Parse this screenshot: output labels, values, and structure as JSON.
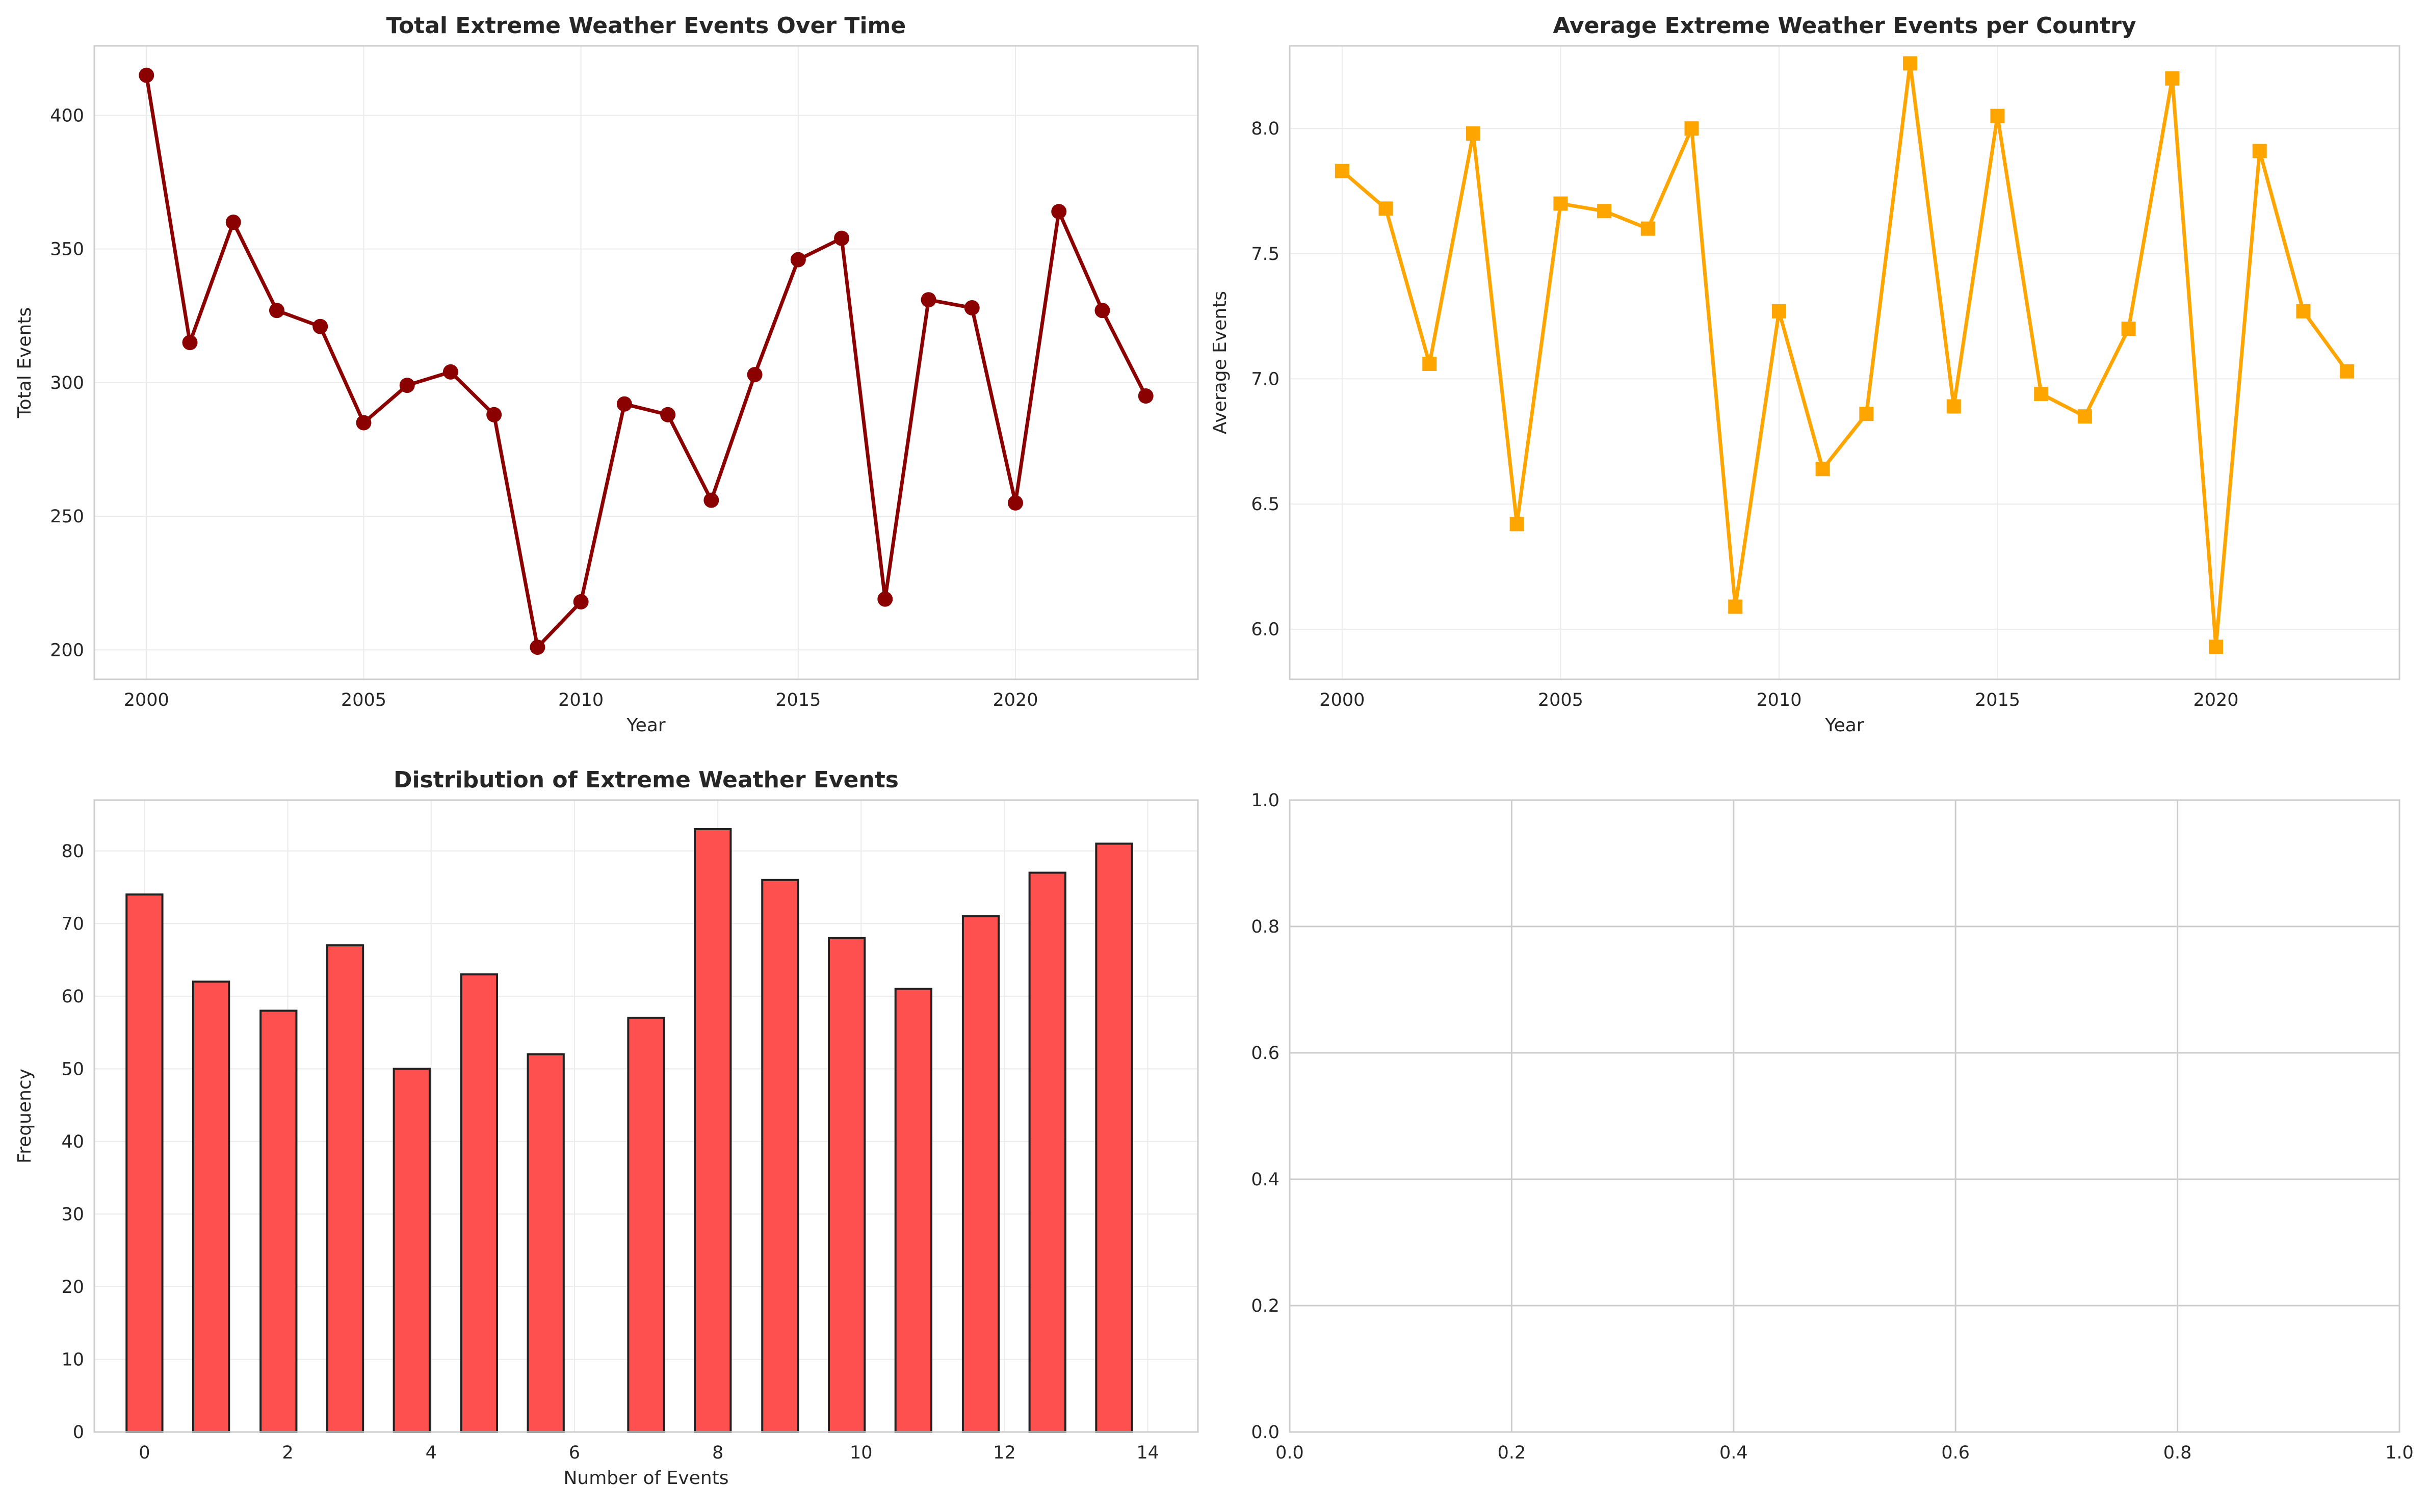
{
  "colors": {
    "series1": "#8b0000",
    "series2": "#ffa500",
    "bars": "#ff4c4c",
    "bar_edge": "#222222",
    "grid": "#ebebeb",
    "grid_empty": "#cccccc",
    "spine": "#cccccc"
  },
  "chart_data": [
    {
      "type": "line",
      "title": "Total Extreme Weather Events Over Time",
      "xlabel": "Year",
      "ylabel": "Total Events",
      "marker": "circle",
      "grid": true,
      "xlim": [
        1998.8,
        2024.2
      ],
      "ylim": [
        189,
        426
      ],
      "xticks": [
        2000,
        2005,
        2010,
        2015,
        2020
      ],
      "yticks": [
        200,
        250,
        300,
        350,
        400
      ],
      "x": [
        2000,
        2001,
        2002,
        2003,
        2004,
        2005,
        2006,
        2007,
        2008,
        2009,
        2010,
        2011,
        2012,
        2013,
        2014,
        2015,
        2016,
        2017,
        2018,
        2019,
        2020,
        2021,
        2022,
        2023
      ],
      "y": [
        415,
        315,
        360,
        327,
        321,
        285,
        299,
        304,
        288,
        201,
        218,
        292,
        288,
        256,
        303,
        346,
        354,
        219,
        331,
        328,
        255,
        364,
        327,
        295
      ]
    },
    {
      "type": "line",
      "title": "Average Extreme Weather Events per Country",
      "xlabel": "Year",
      "ylabel": "Average Events",
      "marker": "square",
      "grid": true,
      "xlim": [
        1998.8,
        2024.2
      ],
      "ylim": [
        5.8,
        8.33
      ],
      "xticks": [
        2000,
        2005,
        2010,
        2015,
        2020
      ],
      "yticks": [
        6.0,
        6.5,
        7.0,
        7.5,
        8.0
      ],
      "x": [
        2000,
        2001,
        2002,
        2003,
        2004,
        2005,
        2006,
        2007,
        2008,
        2009,
        2010,
        2011,
        2012,
        2013,
        2014,
        2015,
        2016,
        2017,
        2018,
        2019,
        2020,
        2021,
        2022,
        2023
      ],
      "y": [
        7.83,
        7.68,
        7.06,
        7.98,
        6.42,
        7.7,
        7.67,
        7.6,
        8.0,
        6.09,
        7.27,
        6.64,
        6.86,
        8.26,
        6.89,
        8.05,
        6.94,
        6.85,
        7.2,
        8.2,
        5.93,
        7.91,
        7.27,
        7.03
      ]
    },
    {
      "type": "bar",
      "title": "Distribution of Extreme Weather Events",
      "xlabel": "Number of Events",
      "ylabel": "Frequency",
      "grid": true,
      "xlim": [
        -0.7,
        14.7
      ],
      "ylim": [
        0,
        87
      ],
      "xticks": [
        0,
        2,
        4,
        6,
        8,
        10,
        12,
        14
      ],
      "yticks": [
        0,
        10,
        20,
        30,
        40,
        50,
        60,
        70,
        80
      ],
      "categories": [
        0,
        1,
        2,
        3,
        4,
        5,
        6,
        7,
        8,
        9,
        10,
        11,
        12,
        13,
        14
      ],
      "values": [
        74,
        62,
        58,
        67,
        50,
        63,
        52,
        57,
        83,
        76,
        68,
        61,
        71,
        77,
        81
      ],
      "bin_centers": [
        0,
        0.93,
        1.87,
        2.8,
        3.73,
        4.67,
        5.6,
        7.0,
        7.93,
        8.87,
        9.8,
        10.73,
        11.67,
        12.6,
        13.53
      ]
    },
    {
      "type": "scatter",
      "title": "",
      "xlabel": "",
      "ylabel": "",
      "grid": true,
      "xlim": [
        0,
        1
      ],
      "ylim": [
        0,
        1
      ],
      "xticks": [
        0.0,
        0.2,
        0.4,
        0.6,
        0.8,
        1.0
      ],
      "yticks": [
        0.0,
        0.2,
        0.4,
        0.6,
        0.8,
        1.0
      ],
      "x": [],
      "y": []
    }
  ]
}
